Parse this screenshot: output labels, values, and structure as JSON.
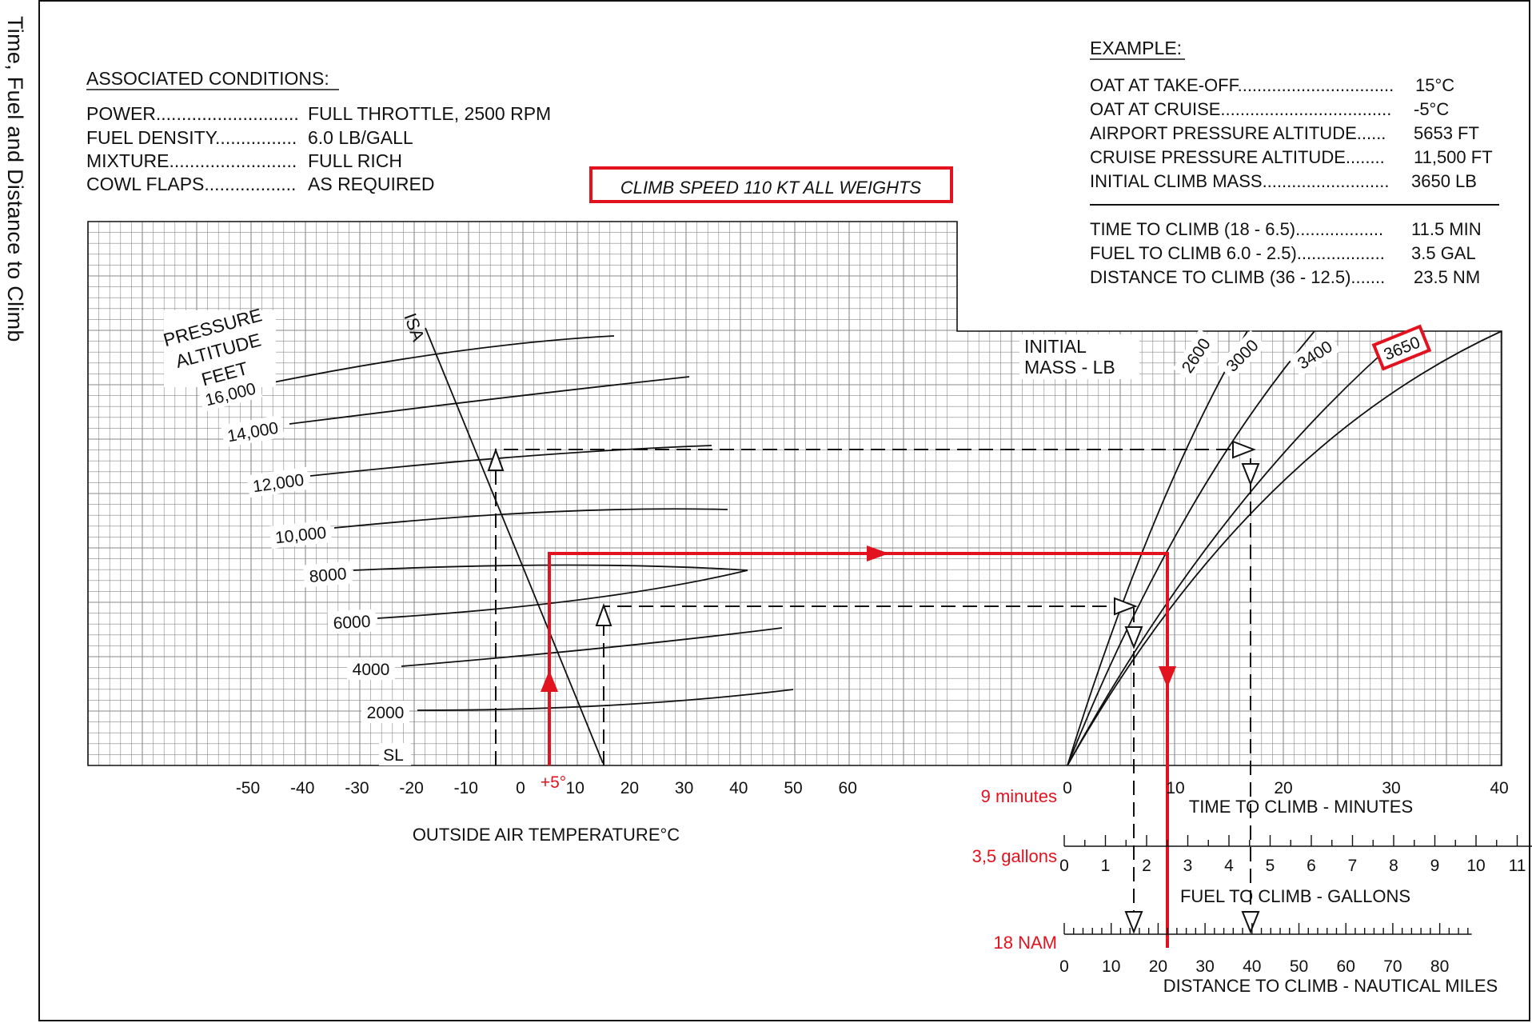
{
  "side_title": "Time, Fuel and Distance to Climb",
  "associated_conditions": {
    "heading": "ASSOCIATED CONDITIONS:",
    "rows": [
      {
        "label": "POWER............................",
        "value": "FULL THROTTLE,  2500 RPM"
      },
      {
        "label": "FUEL DENSITY................",
        "value": "6.0 LB/GALL"
      },
      {
        "label": "MIXTURE.........................",
        "value": "FULL RICH"
      },
      {
        "label": "COWL FLAPS..................",
        "value": "AS REQUIRED"
      }
    ]
  },
  "climb_speed_label": "CLIMB SPEED  110 KT ALL WEIGHTS",
  "example": {
    "heading": "EXAMPLE:",
    "rows": [
      {
        "label": "OAT AT TAKE-OFF................................",
        "value": "15°C"
      },
      {
        "label": "OAT AT CRUISE...................................",
        "value": "-5°C"
      },
      {
        "label": "AIRPORT PRESSURE ALTITUDE......",
        "value": "5653 FT"
      },
      {
        "label": "CRUISE PRESSURE ALTITUDE........",
        "value": "11,500 FT"
      },
      {
        "label": "INITIAL CLIMB MASS..........................",
        "value": "3650 LB"
      }
    ],
    "results": [
      {
        "label": "TIME TO CLIMB (18 - 6.5)..................",
        "value": "11.5 MIN"
      },
      {
        "label": "FUEL TO CLIMB 6.0 - 2.5)..................",
        "value": "3.5 GAL"
      },
      {
        "label": "DISTANCE TO CLIMB (36 - 12.5).......",
        "value": "23.5 NM"
      }
    ]
  },
  "chart_data": {
    "type": "line",
    "left_panel": {
      "xlabel": "OUTSIDE AIR TEMPERATURE°C",
      "x_ticks": [
        "-50",
        "-40",
        "-30",
        "-20",
        "-10",
        "0",
        "10",
        "20",
        "30",
        "40",
        "50",
        "60"
      ],
      "altitude_title": [
        "PRESSURE",
        "ALTITUDE",
        "FEET"
      ],
      "isa_label": "ISA",
      "altitude_labels": [
        "16,000",
        "14,000",
        "12,000",
        "10,000",
        "8000",
        "6000",
        "4000",
        "2000",
        "SL"
      ]
    },
    "right_panel": {
      "mass_title": [
        "INITIAL",
        "MASS - LB"
      ],
      "mass_curves": [
        "2600",
        "3000",
        "3400",
        "3650"
      ],
      "highlighted_mass": "3650",
      "time_axis": {
        "label": "TIME  TO  CLIMB - MINUTES",
        "ticks": [
          "0",
          "10",
          "20",
          "30",
          "40"
        ],
        "range": [
          0,
          40
        ]
      },
      "fuel_axis": {
        "label": "FUEL TO CLIMB - GALLONS",
        "ticks": [
          "0",
          "1",
          "2",
          "3",
          "4",
          "5",
          "6",
          "7",
          "8",
          "9",
          "10",
          "11"
        ]
      },
      "distance_axis": {
        "label": "DISTANCE TO CLIMB - NAUTICAL MILES",
        "ticks": [
          "0",
          "10",
          "20",
          "30",
          "40",
          "50",
          "60",
          "70",
          "80"
        ]
      }
    },
    "red_annotations": {
      "temperature": "+5°",
      "time": "9 minutes",
      "fuel": "3,5 gallons",
      "distance": "18 NAM"
    },
    "colors": {
      "annotation": "#e3121f",
      "grid": "#8a8a8a",
      "ink": "#111111"
    }
  }
}
